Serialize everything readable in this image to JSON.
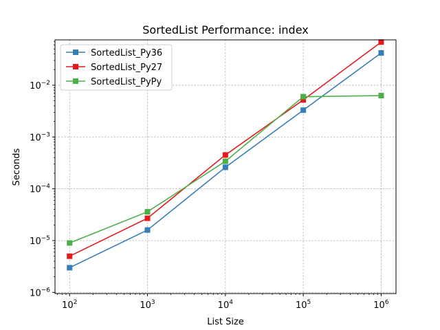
{
  "chart_data": {
    "type": "line",
    "title": "SortedList Performance: index",
    "xlabel": "List Size",
    "ylabel": "Seconds",
    "xscale": "log",
    "yscale": "log",
    "xlim": [
      65,
      1550000
    ],
    "ylim": [
      9.5e-07,
      0.075
    ],
    "grid": true,
    "legend_position": "top-left",
    "x": [
      100,
      1000,
      10000,
      100000,
      1000000
    ],
    "x_ticks": [
      {
        "base": "10",
        "exp": "2",
        "value": 100
      },
      {
        "base": "10",
        "exp": "3",
        "value": 1000
      },
      {
        "base": "10",
        "exp": "4",
        "value": 10000
      },
      {
        "base": "10",
        "exp": "5",
        "value": 100000
      },
      {
        "base": "10",
        "exp": "6",
        "value": 1000000
      }
    ],
    "y_ticks": [
      {
        "base": "10",
        "exp": "−6",
        "value": 1e-06
      },
      {
        "base": "10",
        "exp": "−5",
        "value": 1e-05
      },
      {
        "base": "10",
        "exp": "−4",
        "value": 0.0001
      },
      {
        "base": "10",
        "exp": "−3",
        "value": 0.001
      },
      {
        "base": "10",
        "exp": "−2",
        "value": 0.01
      }
    ],
    "series": [
      {
        "name": "SortedList_Py36",
        "color": "#377eb8",
        "values": [
          3e-06,
          1.6e-05,
          0.00026,
          0.0033,
          0.042
        ]
      },
      {
        "name": "SortedList_Py27",
        "color": "#e41a1c",
        "values": [
          5e-06,
          2.7e-05,
          0.00045,
          0.0052,
          0.068
        ]
      },
      {
        "name": "SortedList_PyPy",
        "color": "#4daf4a",
        "values": [
          9e-06,
          3.6e-05,
          0.00034,
          0.006,
          0.0063
        ]
      }
    ]
  }
}
